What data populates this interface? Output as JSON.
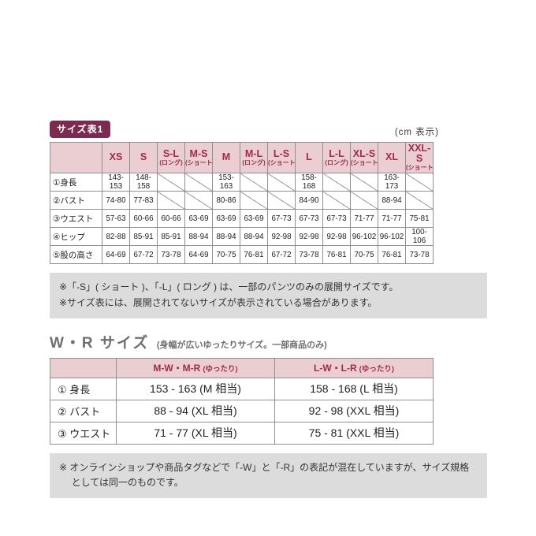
{
  "page": {
    "badge": "サイズ表1",
    "unit": "(cm 表示)"
  },
  "size_table": {
    "columns": [
      {
        "label": "XS",
        "sub": ""
      },
      {
        "label": "S",
        "sub": ""
      },
      {
        "label": "S-L",
        "sub": "(ロング)"
      },
      {
        "label": "M-S",
        "sub": "(ショート)"
      },
      {
        "label": "M",
        "sub": ""
      },
      {
        "label": "M-L",
        "sub": "(ロング)"
      },
      {
        "label": "L-S",
        "sub": "(ショート)"
      },
      {
        "label": "L",
        "sub": ""
      },
      {
        "label": "L-L",
        "sub": "(ロング)"
      },
      {
        "label": "XL-S",
        "sub": "(ショート)"
      },
      {
        "label": "XL",
        "sub": ""
      },
      {
        "label": "XXL-S",
        "sub": "(ショート)"
      }
    ],
    "rows": [
      {
        "label": "①身長",
        "values": [
          "143-153",
          "148-158",
          "",
          "",
          "153-163",
          "",
          "",
          "158-168",
          "",
          "",
          "163-173",
          ""
        ]
      },
      {
        "label": "②バスト",
        "values": [
          "74-80",
          "77-83",
          "",
          "",
          "80-86",
          "",
          "",
          "84-90",
          "",
          "",
          "88-94",
          ""
        ]
      },
      {
        "label": "③ウエスト",
        "values": [
          "57-63",
          "60-66",
          "60-66",
          "63-69",
          "63-69",
          "63-69",
          "67-73",
          "67-73",
          "67-73",
          "71-77",
          "71-77",
          "75-81"
        ]
      },
      {
        "label": "④ヒップ",
        "values": [
          "82-88",
          "85-91",
          "85-91",
          "88-94",
          "88-94",
          "88-94",
          "92-98",
          "92-98",
          "92-98",
          "96-102",
          "96-102",
          "100-106"
        ]
      },
      {
        "label": "⑤股の高さ",
        "values": [
          "64-69",
          "67-72",
          "73-78",
          "64-69",
          "70-75",
          "76-81",
          "67-72",
          "73-78",
          "76-81",
          "70-75",
          "76-81",
          "73-78"
        ]
      }
    ]
  },
  "notes": {
    "lines": [
      "※「-S」( ショート )、「-L」( ロング ) は、一部のパンツのみの展開サイズです。",
      "※サイズ表には、展開されてないサイズが表示されている場合があります。"
    ]
  },
  "wr_section": {
    "title": "W・R サイズ",
    "subtitle": "(身幅が広いゆったりサイズ。一部商品のみ)",
    "columns": [
      {
        "label": "M-W・M-R",
        "sub": "(ゆったり)"
      },
      {
        "label": "L-W・L-R",
        "sub": "(ゆったり)"
      }
    ],
    "rows": [
      {
        "label": "① 身長",
        "values": [
          "153 - 163 (M 相当)",
          "158 - 168 (L 相当)"
        ]
      },
      {
        "label": "② バスト",
        "values": [
          "88 - 94 (XL 相当)",
          "92 - 98 (XXL 相当)"
        ]
      },
      {
        "label": "③ ウエスト",
        "values": [
          "71 - 77 (XL 相当)",
          "75 - 81 (XXL 相当)"
        ]
      }
    ],
    "note": "※ オンラインショップや商品タグなどで「-W」と「-R」の表記が混在していますが、サイズ規格としては同一のものです。"
  },
  "colors": {
    "badge_bg": "#7b2b50",
    "header_bg": "#ebced2",
    "header_text": "#a02a4e",
    "border": "#8f8f8f",
    "note_bg": "#dcdcdc",
    "note_text": "#333333",
    "wr_heading": "#6f6f6f"
  }
}
